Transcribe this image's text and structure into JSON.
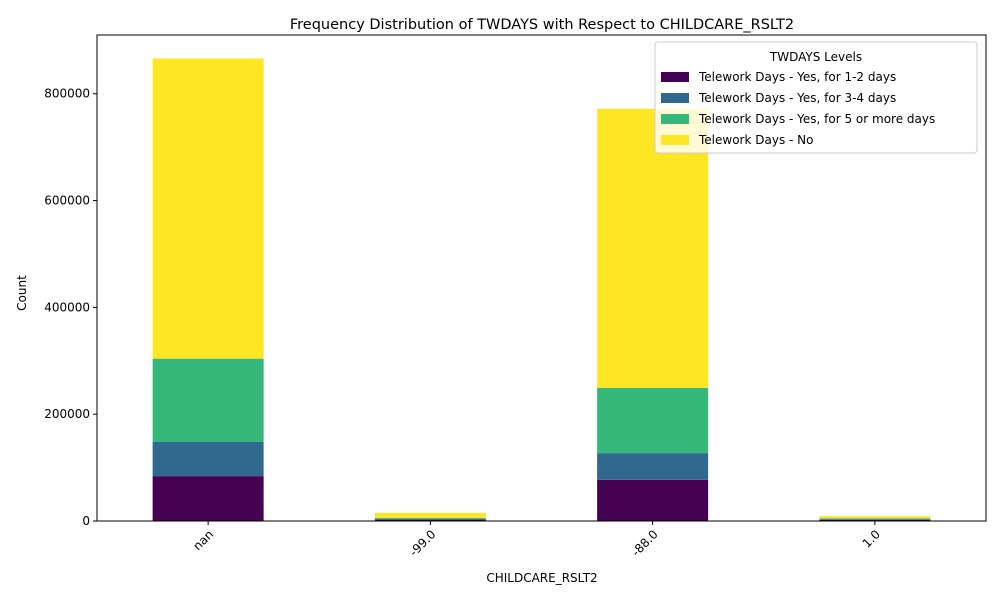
{
  "chart_data": {
    "type": "bar",
    "stacked": true,
    "title": "Frequency Distribution of TWDAYS with Respect to CHILDCARE_RSLT2",
    "xlabel": "CHILDCARE_RSLT2",
    "ylabel": "Count",
    "categories": [
      "nan",
      "-99.0",
      "-88.0",
      "1.0"
    ],
    "ylim": [
      0,
      910000
    ],
    "yticks": [
      0,
      200000,
      400000,
      600000,
      800000
    ],
    "grid": false,
    "legend": {
      "title": "TWDAYS Levels",
      "placement": "top-right"
    },
    "series": [
      {
        "name": "Telework Days - Yes, for 1-2 days",
        "color": "#440154",
        "values": [
          84000,
          2500,
          77000,
          2000
        ]
      },
      {
        "name": "Telework Days - Yes, for 3-4 days",
        "color": "#31688e",
        "values": [
          64000,
          1500,
          50000,
          1500
        ]
      },
      {
        "name": "Telework Days - Yes, for 5 or more days",
        "color": "#35b779",
        "values": [
          156000,
          2000,
          122000,
          1500
        ]
      },
      {
        "name": "Telework Days - No",
        "color": "#fde725",
        "values": [
          562000,
          9000,
          523000,
          4000
        ]
      }
    ]
  }
}
